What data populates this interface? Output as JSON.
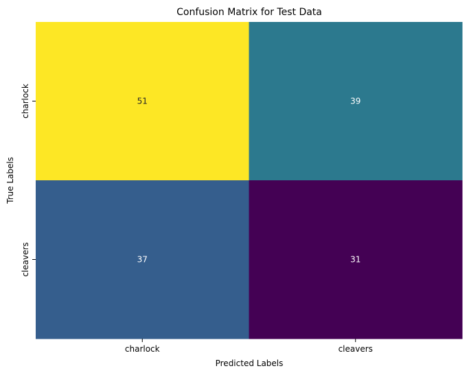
{
  "chart_data": {
    "type": "heatmap",
    "title": "Confusion Matrix for Test Data",
    "xlabel": "Predicted Labels",
    "ylabel": "True Labels",
    "x_categories": [
      "charlock",
      "cleavers"
    ],
    "y_categories": [
      "charlock",
      "cleavers"
    ],
    "values": [
      [
        51,
        39
      ],
      [
        37,
        31
      ]
    ],
    "colormap": "viridis",
    "colorbar": false,
    "cell_colors": [
      [
        "#fde725",
        "#2c798e"
      ],
      [
        "#355e8d",
        "#440154"
      ]
    ],
    "text_colors": [
      [
        "#262626",
        "#ffffff"
      ],
      [
        "#ffffff",
        "#ffffff"
      ]
    ]
  }
}
